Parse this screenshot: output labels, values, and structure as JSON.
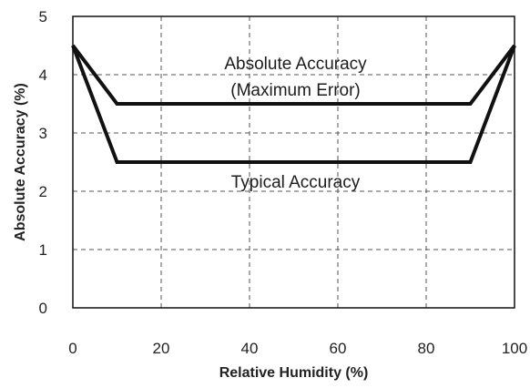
{
  "chart_data": {
    "type": "line",
    "xlabel": "Relative Humidity (%)",
    "ylabel": "Absolute Accuracy  (%)",
    "xlim": [
      0,
      100
    ],
    "ylim": [
      0,
      5
    ],
    "x_ticks": [
      "0",
      "20",
      "40",
      "60",
      "80",
      "100"
    ],
    "y_ticks": [
      "0",
      "1",
      "2",
      "3",
      "4",
      "5"
    ],
    "grid": "dashed",
    "legend": "none",
    "line_color": "#111111",
    "grid_color": "#555555",
    "series": [
      {
        "x": [
          0,
          10,
          90,
          100
        ],
        "y": [
          4.5,
          3.5,
          3.5,
          4.5
        ]
      },
      {
        "x": [
          0,
          10,
          90,
          100
        ],
        "y": [
          4.5,
          2.5,
          2.5,
          4.5
        ]
      }
    ],
    "annotations": [
      {
        "text": "Absolute Accuracy",
        "x": 50,
        "y": 4.2
      },
      {
        "text": "(Maximum Error)",
        "x": 50,
        "y": 3.75
      },
      {
        "text": "Typical Accuracy",
        "x": 50,
        "y": 2.17
      }
    ]
  }
}
